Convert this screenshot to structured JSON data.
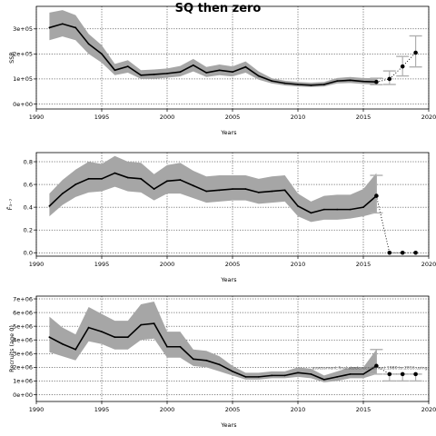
{
  "chart_data": [
    {
      "type": "line",
      "title": "SQ then zero",
      "xlabel": "Years",
      "ylabel": "SSB",
      "xlim": [
        1990,
        2020
      ],
      "ylim": [
        -20000,
        390000
      ],
      "xticks": [
        1990,
        1995,
        2000,
        2005,
        2010,
        2015,
        2020
      ],
      "yticks": [
        0,
        100000,
        200000,
        300000
      ],
      "ytick_labels": [
        "0e+00",
        "1e+05",
        "2e+05",
        "3e+05"
      ],
      "grid": true,
      "series": [
        {
          "role": "estimate",
          "x": [
            1991,
            1992,
            1993,
            1994,
            1995,
            1996,
            1997,
            1998,
            1999,
            2000,
            2001,
            2002,
            2003,
            2004,
            2005,
            2006,
            2007,
            2008,
            2009,
            2010,
            2011,
            2012,
            2013,
            2014,
            2015,
            2016
          ],
          "values": [
            305000,
            320000,
            305000,
            240000,
            200000,
            135000,
            150000,
            115000,
            118000,
            122000,
            128000,
            155000,
            125000,
            135000,
            128000,
            148000,
            112000,
            92000,
            83000,
            78000,
            75000,
            78000,
            92000,
            95000,
            90000,
            88000
          ],
          "lower": [
            255000,
            270000,
            255000,
            200000,
            165000,
            115000,
            125000,
            100000,
            100000,
            105000,
            110000,
            130000,
            108000,
            115000,
            110000,
            125000,
            97000,
            82000,
            74000,
            70000,
            68000,
            70000,
            82000,
            84000,
            80000,
            77000
          ],
          "upper": [
            365000,
            375000,
            355000,
            280000,
            235000,
            160000,
            175000,
            135000,
            138000,
            142000,
            152000,
            180000,
            148000,
            158000,
            150000,
            170000,
            130000,
            103000,
            93000,
            88000,
            85000,
            88000,
            104000,
            108000,
            104000,
            103000
          ]
        },
        {
          "role": "projection",
          "x": [
            2016,
            2017,
            2018,
            2019
          ],
          "values": [
            88000,
            100000,
            150000,
            205000
          ],
          "lower": [
            77000,
            78000,
            112000,
            148000
          ],
          "upper": [
            103000,
            132000,
            190000,
            272000
          ]
        }
      ]
    },
    {
      "type": "line",
      "title": "",
      "xlabel": "Years",
      "ylabel": "F̄₃₋₇",
      "xlim": [
        1990,
        2020
      ],
      "ylim": [
        -0.03,
        0.88
      ],
      "xticks": [
        1990,
        1995,
        2000,
        2005,
        2010,
        2015,
        2020
      ],
      "yticks": [
        0.0,
        0.2,
        0.4,
        0.6,
        0.8
      ],
      "ytick_labels": [
        "0.0",
        "0.2",
        "0.4",
        "0.6",
        "0.8"
      ],
      "grid": true,
      "series": [
        {
          "role": "estimate",
          "x": [
            1991,
            1992,
            1993,
            1994,
            1995,
            1996,
            1997,
            1998,
            1999,
            2000,
            2001,
            2002,
            2003,
            2004,
            2005,
            2006,
            2007,
            2008,
            2009,
            2010,
            2011,
            2012,
            2013,
            2014,
            2015,
            2016
          ],
          "values": [
            0.41,
            0.52,
            0.6,
            0.65,
            0.65,
            0.7,
            0.66,
            0.65,
            0.56,
            0.63,
            0.64,
            0.59,
            0.54,
            0.55,
            0.56,
            0.56,
            0.53,
            0.54,
            0.55,
            0.41,
            0.35,
            0.38,
            0.38,
            0.38,
            0.4,
            0.5
          ],
          "lower": [
            0.32,
            0.42,
            0.49,
            0.53,
            0.54,
            0.58,
            0.54,
            0.53,
            0.46,
            0.52,
            0.52,
            0.48,
            0.44,
            0.45,
            0.46,
            0.46,
            0.43,
            0.44,
            0.45,
            0.32,
            0.27,
            0.29,
            0.29,
            0.3,
            0.32,
            0.35
          ],
          "upper": [
            0.52,
            0.64,
            0.73,
            0.8,
            0.78,
            0.85,
            0.8,
            0.79,
            0.69,
            0.77,
            0.79,
            0.72,
            0.67,
            0.68,
            0.68,
            0.68,
            0.65,
            0.67,
            0.68,
            0.52,
            0.45,
            0.5,
            0.51,
            0.51,
            0.56,
            0.7
          ]
        },
        {
          "role": "projection",
          "x": [
            2016,
            2017,
            2018,
            2019
          ],
          "values": [
            0.5,
            0.0,
            0.0,
            0.0
          ],
          "lower": [
            0.35,
            0.0,
            0.0,
            0.0
          ],
          "upper": [
            0.68,
            0.0,
            0.0,
            0.0
          ]
        }
      ]
    },
    {
      "type": "line",
      "title": "",
      "xlabel": "Years",
      "ylabel": "Recruits (age 0)",
      "xlim": [
        1990,
        2020
      ],
      "ylim": [
        -500000,
        7200000
      ],
      "xticks": [
        1990,
        1995,
        2000,
        2005,
        2010,
        2015,
        2020
      ],
      "yticks": [
        0,
        1000000,
        2000000,
        3000000,
        4000000,
        5000000,
        6000000,
        7000000
      ],
      "ytick_labels": [
        "0e+00",
        "1e+06",
        "2e+06",
        "3e+06",
        "4e+06",
        "5e+06",
        "6e+06",
        "7e+06"
      ],
      "grid": true,
      "annotation": "assessment.final.stock.recruitment.1980.to.2016.using.",
      "series": [
        {
          "role": "estimate",
          "x": [
            1991,
            1992,
            1993,
            1994,
            1995,
            1996,
            1997,
            1998,
            1999,
            2000,
            2001,
            2002,
            2003,
            2004,
            2005,
            2006,
            2007,
            2008,
            2009,
            2010,
            2011,
            2012,
            2013,
            2014,
            2015,
            2016
          ],
          "values": [
            4200000,
            3700000,
            3300000,
            4900000,
            4600000,
            4200000,
            4200000,
            5100000,
            5200000,
            3500000,
            3500000,
            2600000,
            2500000,
            2200000,
            1700000,
            1300000,
            1300000,
            1400000,
            1400000,
            1600000,
            1500000,
            1100000,
            1300000,
            1500000,
            1500000,
            2100000
          ],
          "lower": [
            3100000,
            2800000,
            2500000,
            3900000,
            3700000,
            3300000,
            3300000,
            4000000,
            4100000,
            2700000,
            2700000,
            2100000,
            2000000,
            1700000,
            1400000,
            1100000,
            1100000,
            1200000,
            1200000,
            1300000,
            1200000,
            900000,
            1000000,
            1200000,
            1200000,
            1500000
          ],
          "upper": [
            5700000,
            4900000,
            4400000,
            6400000,
            5900000,
            5400000,
            5400000,
            6600000,
            6800000,
            4600000,
            4600000,
            3300000,
            3200000,
            2800000,
            2100000,
            1600000,
            1600000,
            1700000,
            1700000,
            2000000,
            1900000,
            1400000,
            1700000,
            2000000,
            2000000,
            3300000
          ]
        },
        {
          "role": "projection",
          "x": [
            2016,
            2017,
            2018,
            2019
          ],
          "values": [
            2100000,
            1500000,
            1500000,
            1500000
          ],
          "lower": [
            1500000,
            1000000,
            1000000,
            1000000
          ],
          "upper": [
            3300000,
            1500000,
            1500000,
            1500000
          ]
        }
      ]
    }
  ],
  "colors": {
    "band": "#a6a6a6",
    "line": "#000000",
    "projection_bar": "#b0b0b0",
    "grid": "#000000"
  }
}
